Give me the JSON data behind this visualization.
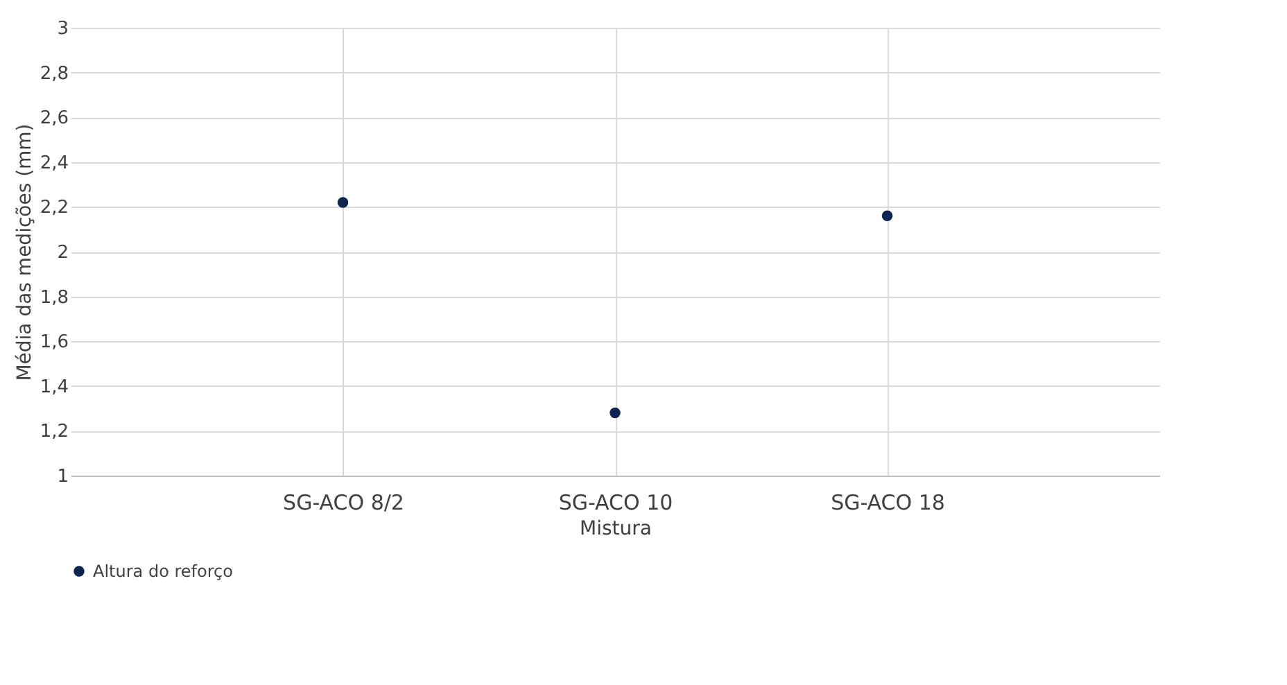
{
  "chart_data": {
    "type": "scatter",
    "xlabel": "Mistura",
    "ylabel": "Média das medições (mm)",
    "categories": [
      "SG-ACO 8/2",
      "SG-ACO 10",
      "SG-ACO 18"
    ],
    "series": [
      {
        "name": "Altura do reforço",
        "color": "#0e2451",
        "values": [
          2.22,
          1.28,
          2.16
        ]
      }
    ],
    "ylim": [
      1,
      3
    ],
    "yticks": [
      1,
      {
        "value": 1.2,
        "label": "1,2"
      },
      {
        "value": 1.4,
        "label": "1,4"
      },
      {
        "value": 1.6,
        "label": "1,6"
      },
      {
        "value": 1.8,
        "label": "1,8"
      },
      2,
      {
        "value": 2.2,
        "label": "2,2"
      },
      {
        "value": 2.4,
        "label": "2,4"
      },
      {
        "value": 2.6,
        "label": "2,6"
      },
      {
        "value": 2.8,
        "label": "2,8"
      },
      3
    ],
    "grid": true,
    "legend": "bottom",
    "marker": "circle"
  }
}
